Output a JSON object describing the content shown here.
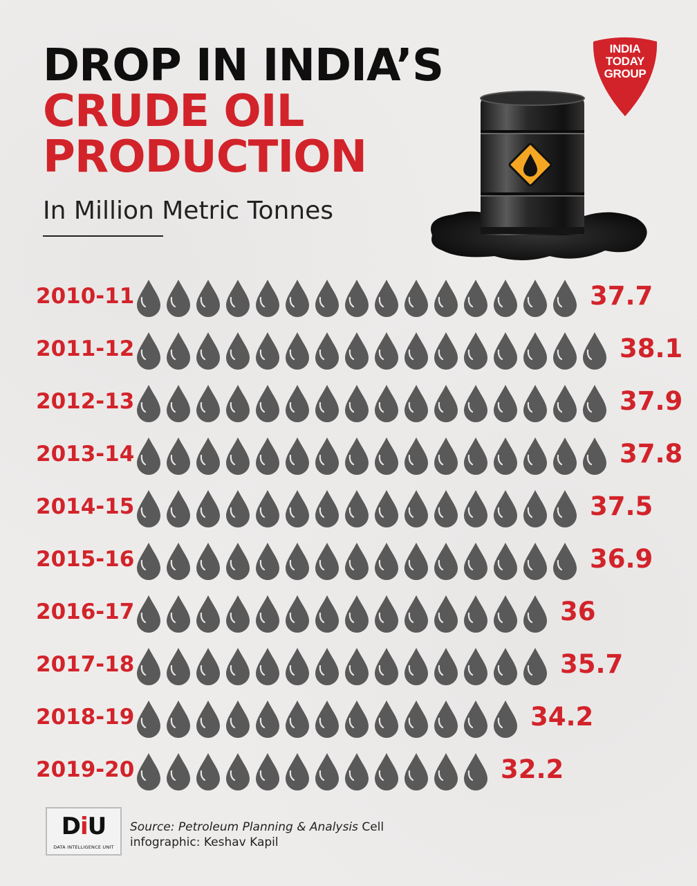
{
  "title": {
    "line1": "DROP IN INDIA’S",
    "line2": "CRUDE OIL",
    "line3": "PRODUCTION"
  },
  "subtitle": "In Million Metric Tonnes",
  "brand": {
    "logo_line1": "INDIA",
    "logo_line2": "TODAY",
    "logo_line3": "GROUP",
    "logo_color": "#d2232a",
    "diu_mark_left": "D",
    "diu_mark_mid": "i",
    "diu_mark_right": "U",
    "diu_tagline": "DATA INTELLIGENCE UNIT"
  },
  "footer": {
    "source_label": "Source: Petroleum Planning & Analysis",
    "source_suffix": "Cell",
    "credit": "infographic: Keshav Kapil"
  },
  "colors": {
    "accent": "#d2232a",
    "drop": "#595959",
    "title": "#0f0f0f"
  },
  "icons": {
    "unit": "oil-drop-icon",
    "hero": "oil-barrel-icon"
  },
  "chart_data": {
    "type": "bar",
    "orientation": "horizontal",
    "style": "pictogram",
    "unit": "In Million Metric Tonnes",
    "categories": [
      "2010-11",
      "2011-12",
      "2012-13",
      "2013-14",
      "2014-15",
      "2015-16",
      "2016-17",
      "2017-18",
      "2018-19",
      "2019-20"
    ],
    "values": [
      37.7,
      38.1,
      37.9,
      37.8,
      37.5,
      36.9,
      36,
      35.7,
      34.2,
      32.2
    ],
    "drop_counts": [
      15,
      16,
      16,
      16,
      15,
      15,
      14,
      14,
      13,
      12
    ],
    "labels": [
      "37.7",
      "38.1",
      "37.9",
      "37.8",
      "37.5",
      "36.9",
      "36",
      "35.7",
      "34.2",
      "32.2"
    ]
  }
}
